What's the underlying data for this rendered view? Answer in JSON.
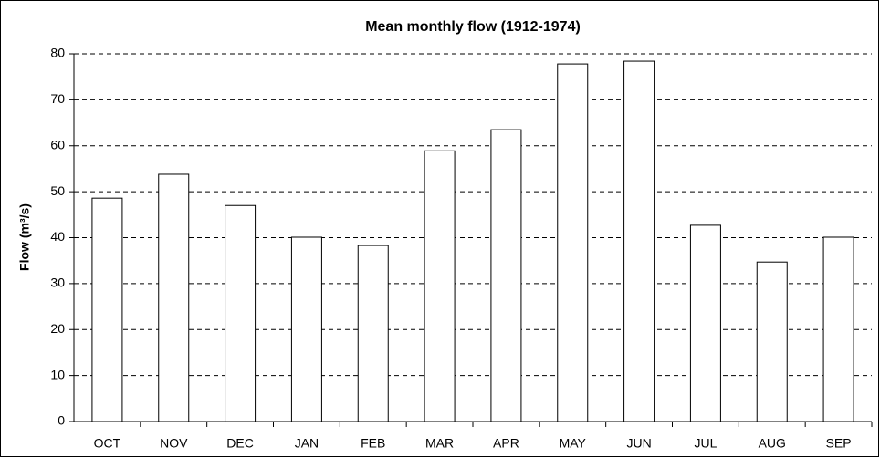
{
  "chart_data": {
    "type": "bar",
    "title": "Mean monthly flow (1912-1974)",
    "y_label": "Flow (m³/s)",
    "categories": [
      "OCT",
      "NOV",
      "DEC",
      "JAN",
      "FEB",
      "MAR",
      "APR",
      "MAY",
      "JUN",
      "JUL",
      "AUG",
      "SEP"
    ],
    "values": [
      48.6,
      53.8,
      47.0,
      40.1,
      38.3,
      58.9,
      63.5,
      77.8,
      78.4,
      42.7,
      34.7,
      40.1
    ],
    "color": "#ffffff",
    "ylim": [
      0,
      80
    ],
    "yticks": [
      0,
      10,
      20,
      30,
      40,
      50,
      60,
      70,
      80
    ],
    "grid": true
  }
}
